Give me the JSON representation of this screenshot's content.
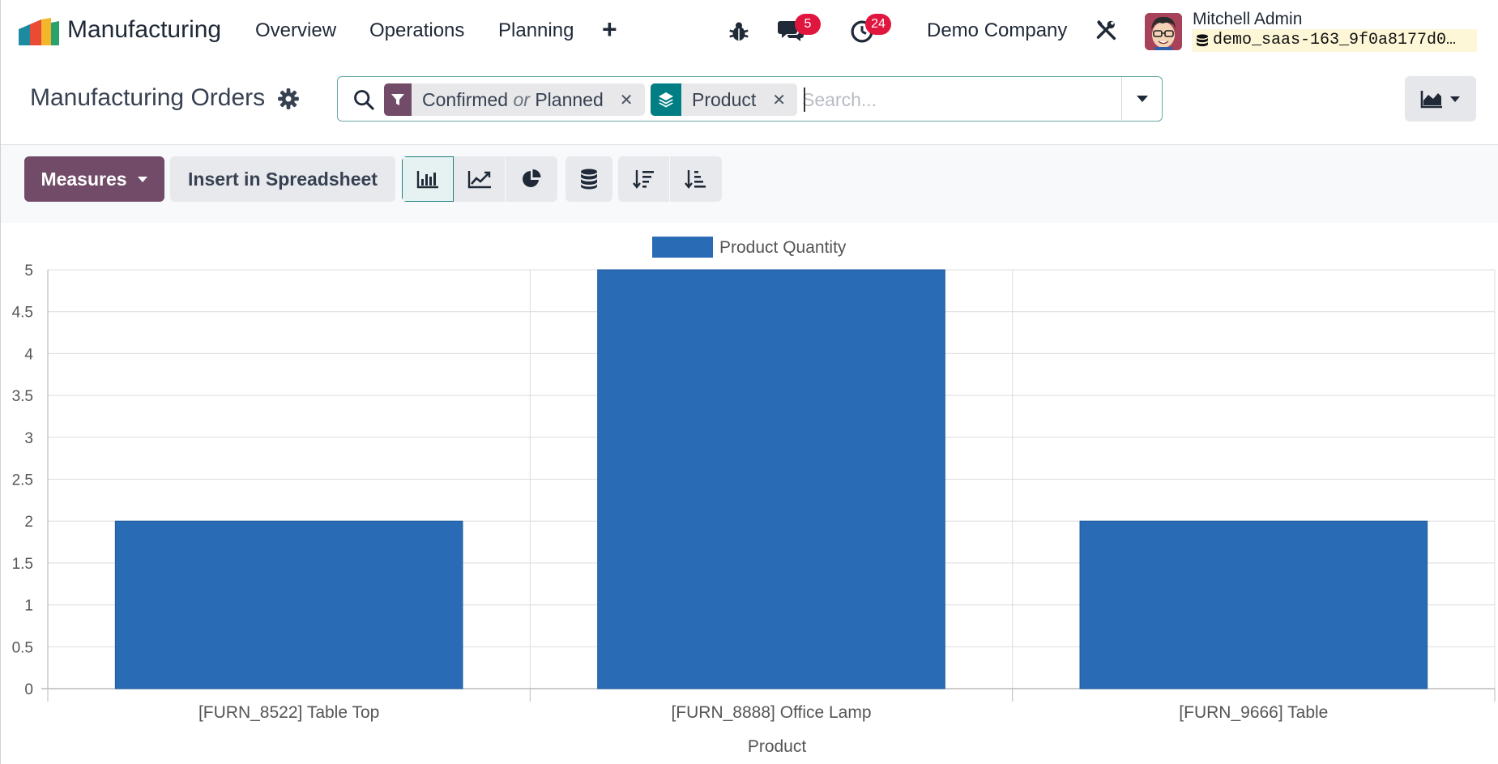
{
  "navbar": {
    "app_name": "Manufacturing",
    "menu": [
      "Overview",
      "Operations",
      "Planning"
    ],
    "plus": "+",
    "messages_badge": "5",
    "activities_badge": "24",
    "company": "Demo Company",
    "user_name": "Mitchell Admin",
    "database": "demo_saas-163_9f0a8177d0…"
  },
  "control_panel": {
    "title": "Manufacturing Orders",
    "facets": [
      {
        "icon": "filter-icon",
        "part1": "Confirmed",
        "or": "or",
        "part2": "Planned",
        "color": "#714b67"
      },
      {
        "icon": "layers-icon",
        "label": "Product",
        "color": "#017e84"
      }
    ],
    "search_placeholder": "Search..."
  },
  "toolbar": {
    "measures_label": "Measures",
    "insert_label": "Insert in Spreadsheet",
    "view_buttons": [
      "bar-chart-icon",
      "line-chart-icon",
      "pie-chart-icon",
      "stacked-icon",
      "sort-descending-icon",
      "sort-ascending-icon"
    ],
    "active_view": "bar-chart-icon"
  },
  "colors": {
    "brand": "#714b67",
    "accent": "#017e84",
    "bar": "#2a6bb6",
    "badge": "#e0163f"
  },
  "chart_data": {
    "type": "bar",
    "categories": [
      "[FURN_8522] Table Top",
      "[FURN_8888] Office Lamp",
      "[FURN_9666] Table"
    ],
    "series": [
      {
        "name": "Product Quantity",
        "values": [
          2,
          5,
          2
        ]
      }
    ],
    "xlabel": "Product",
    "ylabel": "",
    "ylim": [
      0,
      5
    ],
    "yticks": [
      "0",
      "0.5",
      "1",
      "1.5",
      "2",
      "2.5",
      "3",
      "3.5",
      "4",
      "4.5",
      "5"
    ],
    "grid": true,
    "legend": "top-center"
  }
}
